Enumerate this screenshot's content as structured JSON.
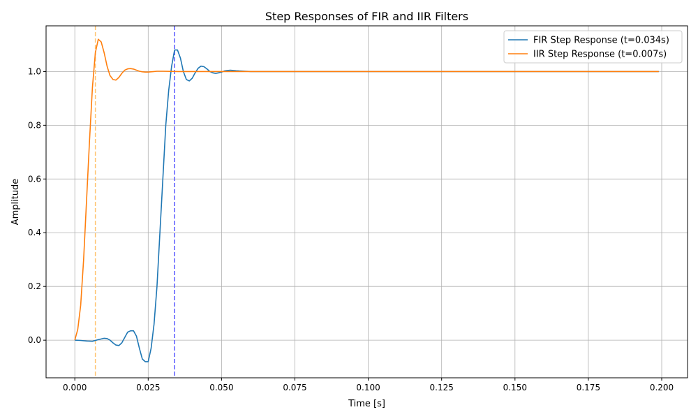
{
  "chart_data": {
    "type": "line",
    "title": "Step Responses of FIR and IIR Filters",
    "xlabel": "Time [s]",
    "ylabel": "Amplitude",
    "xlim": [
      -0.0098,
      0.2088
    ],
    "ylim": [
      -0.14,
      1.17
    ],
    "xticks": [
      0.0,
      0.025,
      0.05,
      0.075,
      0.1,
      0.125,
      0.15,
      0.175,
      0.2
    ],
    "xtick_labels": [
      "0.000",
      "0.025",
      "0.050",
      "0.075",
      "0.100",
      "0.125",
      "0.150",
      "0.175",
      "0.200"
    ],
    "yticks": [
      0.0,
      0.2,
      0.4,
      0.6,
      0.8,
      1.0
    ],
    "ytick_labels": [
      "0.0",
      "0.2",
      "0.4",
      "0.6",
      "0.8",
      "1.0"
    ],
    "grid": true,
    "legend_position": "top-right",
    "series": [
      {
        "name": "FIR Step Response (t=0.034s)",
        "color": "#1f77b4",
        "x": [
          0.0,
          0.002,
          0.004,
          0.006,
          0.008,
          0.01,
          0.011,
          0.012,
          0.013,
          0.014,
          0.015,
          0.016,
          0.017,
          0.018,
          0.019,
          0.02,
          0.021,
          0.022,
          0.023,
          0.024,
          0.025,
          0.026,
          0.027,
          0.028,
          0.029,
          0.03,
          0.031,
          0.032,
          0.033,
          0.034,
          0.035,
          0.036,
          0.037,
          0.038,
          0.039,
          0.04,
          0.041,
          0.042,
          0.043,
          0.044,
          0.045,
          0.046,
          0.047,
          0.048,
          0.049,
          0.05,
          0.051,
          0.052,
          0.053,
          0.054,
          0.055,
          0.056,
          0.058,
          0.06,
          0.199
        ],
        "y": [
          0.0,
          -0.001,
          -0.003,
          -0.004,
          0.002,
          0.007,
          0.006,
          0.0,
          -0.01,
          -0.018,
          -0.02,
          -0.01,
          0.01,
          0.03,
          0.035,
          0.035,
          0.015,
          -0.03,
          -0.07,
          -0.08,
          -0.08,
          -0.03,
          0.06,
          0.2,
          0.4,
          0.6,
          0.8,
          0.93,
          1.02,
          1.08,
          1.08,
          1.05,
          1.0,
          0.97,
          0.965,
          0.975,
          0.995,
          1.012,
          1.02,
          1.018,
          1.01,
          1.0,
          0.995,
          0.993,
          0.995,
          0.998,
          1.002,
          1.004,
          1.005,
          1.004,
          1.003,
          1.002,
          1.001,
          1.0,
          1.0
        ]
      },
      {
        "name": "IIR Step Response (t=0.007s)",
        "color": "#ff7f0e",
        "x": [
          0.0,
          0.001,
          0.002,
          0.003,
          0.004,
          0.005,
          0.006,
          0.007,
          0.008,
          0.009,
          0.01,
          0.011,
          0.012,
          0.013,
          0.014,
          0.015,
          0.016,
          0.017,
          0.018,
          0.019,
          0.02,
          0.021,
          0.022,
          0.023,
          0.024,
          0.025,
          0.026,
          0.027,
          0.028,
          0.03,
          0.035,
          0.199
        ],
        "y": [
          0.0,
          0.04,
          0.13,
          0.3,
          0.52,
          0.74,
          0.94,
          1.07,
          1.12,
          1.11,
          1.07,
          1.02,
          0.985,
          0.97,
          0.968,
          0.978,
          0.993,
          1.005,
          1.01,
          1.011,
          1.009,
          1.005,
          1.001,
          0.999,
          0.998,
          0.998,
          0.999,
          1.0,
          1.001,
          1.001,
          1.0,
          1.0
        ]
      }
    ],
    "vlines": [
      {
        "x": 0.034,
        "color": "#5a5aff",
        "style": "dashed"
      },
      {
        "x": 0.007,
        "color": "#ffc470",
        "style": "dashed"
      }
    ]
  }
}
